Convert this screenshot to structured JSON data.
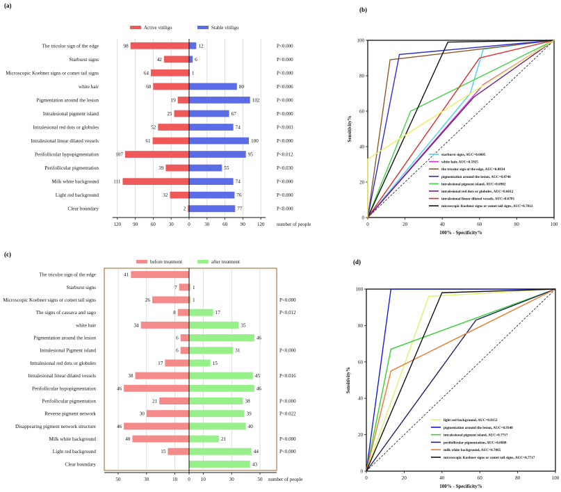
{
  "chart_data": [
    {
      "panel": "(a)",
      "type": "bar",
      "orientation": "horizontal-diverging",
      "legend": [
        "Active vitiligo",
        "Stable vitiligo"
      ],
      "colors": [
        "#f0595a",
        "#5c6ce6"
      ],
      "categories": [
        "The tricolor sign of the edge",
        "Starburst signs",
        "Microscopic Koebner signs or comet tail signs",
        "white hair",
        "Pigmentation around the lesion",
        "Intralesional pigment island",
        "Intralesional red dots or globules",
        "Intralesional linear dilated vessels",
        "Perifollicular hypopigmentation",
        "Perifollicular pigmentation",
        "Milk white background",
        "Light red background",
        "Clear boundary"
      ],
      "series": [
        {
          "name": "Active vitiligo",
          "values": [
            98,
            42,
            64,
            60,
            19,
            25,
            52,
            61,
            107,
            39,
            111,
            32,
            2
          ]
        },
        {
          "name": "Stable vitiligo",
          "values": [
            12,
            6,
            1,
            80,
            102,
            67,
            74,
            100,
            95,
            55,
            74,
            76,
            77
          ]
        }
      ],
      "p_values": [
        "P<0.000",
        "P<0.000",
        "P<0.000",
        "P<0.006",
        "P<0.000",
        "P<0.000",
        "P<0.003",
        "P<0.000",
        "P<0.012",
        "P<0.030",
        "P<0.000",
        "P<0.000",
        "P<0.000"
      ],
      "ticks": [
        "120",
        "90",
        "60",
        "30",
        "0",
        "30",
        "60",
        "90",
        "120"
      ],
      "xlabel": "number of people",
      "xlim": [
        -120,
        120
      ]
    },
    {
      "panel": "(b)",
      "type": "line",
      "xlabel": "100% - Specificity%",
      "ylabel": "Sensitivity%",
      "xlim": [
        0,
        100
      ],
      "ylim": [
        0,
        100
      ],
      "ticks": [
        "0",
        "20",
        "40",
        "60",
        "80",
        "100"
      ],
      "series": [
        {
          "name": "starburst signs, AUC=0.6605",
          "color": "#44d4f2",
          "x": [
            0,
            55,
            62,
            100
          ],
          "y": [
            0,
            70,
            95,
            100
          ]
        },
        {
          "name": "white hair, AUC=0.5925",
          "color": "#cc33cc",
          "x": [
            0,
            62,
            100
          ],
          "y": [
            0,
            75,
            100
          ]
        },
        {
          "name": "the tricolor sign of the edge, AUC=0.8834",
          "color": "#8b5a2b",
          "x": [
            0,
            12,
            100
          ],
          "y": [
            0,
            89,
            100
          ]
        },
        {
          "name": "pigmentation around the lesion, AUC=0.8746",
          "color": "#2b2bd6",
          "x": [
            0,
            17,
            100
          ],
          "y": [
            0,
            92,
            100
          ]
        },
        {
          "name": "intralesional pigment island, AUC=0.6902",
          "color": "#44d444",
          "x": [
            0,
            23,
            100
          ],
          "y": [
            0,
            60,
            100
          ]
        },
        {
          "name": "intralesional red dots or globules, AUC=0.6012",
          "color": "#6a1f8a",
          "x": [
            0,
            57,
            100
          ],
          "y": [
            0,
            68,
            100
          ]
        },
        {
          "name": "intralesional linear dilated vessels, AUC=0.6781",
          "color": "#e02828",
          "x": [
            0,
            60,
            100
          ],
          "y": [
            0,
            90,
            100
          ]
        },
        {
          "name": "microscopic Koebner signs or comet tail signs, AUC=0.7812",
          "color": "#111111",
          "x": [
            0,
            43,
            100
          ],
          "y": [
            0,
            99,
            100
          ]
        },
        {
          "name": "",
          "color": "#f2ef5a",
          "x": [
            0,
            0,
            100
          ],
          "y": [
            0,
            33,
            100
          ]
        }
      ]
    },
    {
      "panel": "(c)",
      "type": "bar",
      "orientation": "horizontal-diverging",
      "legend": [
        "before treatment",
        "after treatment"
      ],
      "colors": [
        "#f48a8a",
        "#97f08a"
      ],
      "categories": [
        "The tricolor sign of the edge",
        "Starburst signs",
        "Microscopic Koebner signs or comet tail signs",
        "The signs of cassava and sago",
        "white hair",
        "Pigmentation around the lesion",
        "Intralesional Pigment island",
        "Intralesional red dots or globules",
        "Intralesional linear dilated vessels",
        "Perifollicular hypopigmentation",
        "Perifollicular pigmentation",
        "Reverse pigment network",
        "Disappearing pigment network structure",
        "Milk white background",
        "Light red background",
        "Clear boundary"
      ],
      "series": [
        {
          "name": "before treatment",
          "values": [
            41,
            7,
            26,
            8,
            34,
            6,
            6,
            17,
            38,
            46,
            21,
            30,
            46,
            40,
            15,
            0
          ]
        },
        {
          "name": "after treatment",
          "values": [
            0,
            1,
            1,
            17,
            35,
            46,
            31,
            15,
            45,
            46,
            38,
            39,
            40,
            21,
            44,
            43
          ]
        }
      ],
      "before_labels": [
        "41",
        "7",
        "26",
        "8",
        "34",
        "6",
        "6",
        "17",
        "38",
        "46",
        "21",
        "30",
        "46",
        "40",
        "15",
        ""
      ],
      "after_labels": [
        "",
        "1",
        "1",
        "17",
        "35",
        "46",
        "31",
        "15",
        "45",
        "46",
        "38",
        "39",
        "40",
        "21",
        "44",
        "43"
      ],
      "p_values": [
        "",
        "",
        "P<0.000",
        "P<0.012",
        "",
        "",
        "P<0.000",
        "",
        "P<0.016",
        "",
        "P<0.000",
        "P<0.022",
        "",
        "P<0.000",
        "P<0.000",
        ""
      ],
      "ticks": [
        "50",
        "30",
        "10",
        "0",
        "10",
        "30",
        "50"
      ],
      "xlabel": "number of people",
      "xlim": [
        -55,
        55
      ]
    },
    {
      "panel": "(d)",
      "type": "line",
      "xlabel": "100% - Specificity%",
      "ylabel": "Sensitivity%",
      "xlim": [
        0,
        100
      ],
      "ylim": [
        0,
        100
      ],
      "ticks": [
        "0",
        "20",
        "40",
        "60",
        "80",
        "100"
      ],
      "series": [
        {
          "name": "light red background, AUC=0.8152",
          "color": "#e0f070",
          "x": [
            0,
            33,
            100
          ],
          "y": [
            0,
            96,
            100
          ]
        },
        {
          "name": "pigmentation around the lesion, AUC=0.9348",
          "color": "#1818d8",
          "x": [
            0,
            13,
            100
          ],
          "y": [
            0,
            100,
            100
          ]
        },
        {
          "name": "intralesional pigment island, AUC=0.7717",
          "color": "#30d030",
          "x": [
            0,
            13,
            100
          ],
          "y": [
            0,
            67,
            100
          ]
        },
        {
          "name": "perifollicular pigmentation, AUC=0.6848",
          "color": "#222266",
          "x": [
            0,
            58,
            100
          ],
          "y": [
            0,
            83,
            100
          ]
        },
        {
          "name": "milk white background, AUC=0.7065",
          "color": "#f07a28",
          "x": [
            0,
            13,
            100
          ],
          "y": [
            0,
            55,
            100
          ]
        },
        {
          "name": "microscopic Koebner signs or comet tail signs, AUC=0.7717",
          "color": "#111111",
          "x": [
            0,
            40,
            100
          ],
          "y": [
            0,
            98,
            100
          ]
        }
      ]
    }
  ]
}
